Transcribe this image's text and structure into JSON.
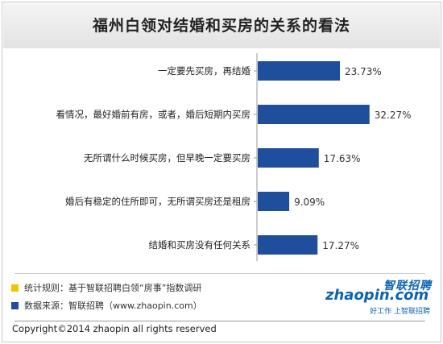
{
  "title": "福州白领对结婚和买房的关系的看法",
  "colors": {
    "bar": "#1f4e9c",
    "note_yellow": "#f5c400",
    "note_blue": "#1f4e9c",
    "brand": "#0b63b6"
  },
  "chart_data": {
    "type": "bar",
    "orientation": "horizontal",
    "title": "福州白领对结婚和买房的关系的看法",
    "categories": [
      "一定要先买房，再结婚",
      "看情况，最好婚前有房，或者，婚后短期内买房",
      "无所谓什么时候买房，但早晚一定要买房",
      "婚后有稳定的住所即可，无所谓买房还是租房",
      "结婚和买房没有任何关系"
    ],
    "values": [
      23.73,
      32.27,
      17.63,
      9.09,
      17.27
    ],
    "value_labels": [
      "23.73%",
      "32.27%",
      "17.63%",
      "9.09%",
      "17.27%"
    ],
    "unit": "%",
    "xlim": [
      0,
      35
    ],
    "grid": false,
    "legend": "none"
  },
  "notes": [
    {
      "icon": "yellow-square-icon",
      "text": "统计规则：基于智联招聘白领“房事”指数调研"
    },
    {
      "icon": "blue-square-icon",
      "text": "数据来源：智联招聘（www.zhaopin.com）"
    }
  ],
  "logo": {
    "mark": "智联招聘",
    "domain": "zhaopin.com",
    "slogan": "好工作 上智联招聘"
  },
  "copyright": "Copyright©2014 zhaopin all rights reserved"
}
